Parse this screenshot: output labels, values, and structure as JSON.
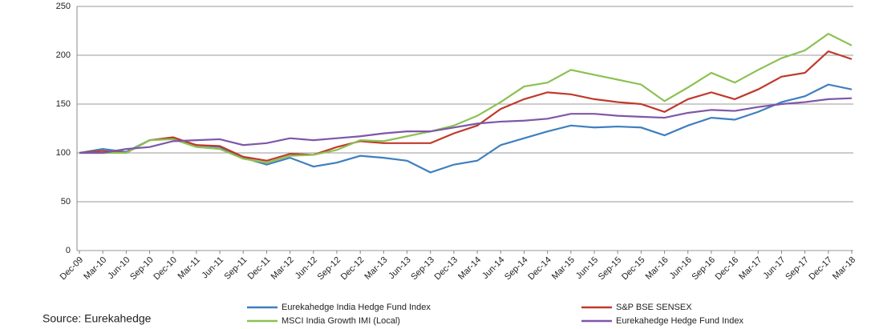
{
  "chart_data": {
    "type": "line",
    "source": "Source: Eurekahedge",
    "categories": [
      "Dec-09",
      "Mar-10",
      "Jun-10",
      "Sep-10",
      "Dec-10",
      "Mar-11",
      "Jun-11",
      "Sep-11",
      "Dec-11",
      "Mar-12",
      "Jun-12",
      "Sep-12",
      "Dec-12",
      "Mar-13",
      "Jun-13",
      "Sep-13",
      "Dec-13",
      "Mar-14",
      "Jun-14",
      "Sep-14",
      "Dec-14",
      "Mar-15",
      "Jun-15",
      "Sep-15",
      "Dec-15",
      "Mar-16",
      "Jun-16",
      "Sep-16",
      "Dec-16",
      "Mar-17",
      "Jun-17",
      "Sep-17",
      "Dec-17",
      "Mar-18"
    ],
    "series": [
      {
        "name": "Eurekahedge India Hedge Fund Index",
        "color": "#3f7fbf",
        "values": [
          100,
          104,
          101,
          113,
          115,
          108,
          106,
          95,
          88,
          95,
          86,
          90,
          97,
          95,
          92,
          80,
          88,
          92,
          108,
          115,
          122,
          128,
          126,
          127,
          126,
          118,
          128,
          136,
          134,
          142,
          152,
          158,
          170,
          165
        ]
      },
      {
        "name": "S&P BSE SENSEX",
        "color": "#c0392b",
        "values": [
          100,
          102,
          100,
          113,
          116,
          108,
          107,
          96,
          92,
          99,
          98,
          106,
          112,
          110,
          110,
          110,
          120,
          128,
          145,
          155,
          162,
          160,
          155,
          152,
          150,
          142,
          155,
          162,
          155,
          165,
          178,
          182,
          204,
          196
        ]
      },
      {
        "name": "MSCI India Growth IMI (Local)",
        "color": "#8cc152",
        "values": [
          100,
          100,
          100,
          113,
          114,
          106,
          104,
          94,
          90,
          97,
          98,
          103,
          113,
          112,
          117,
          122,
          128,
          138,
          152,
          168,
          172,
          185,
          180,
          175,
          170,
          153,
          167,
          182,
          172,
          185,
          197,
          205,
          222,
          210
        ]
      },
      {
        "name": "Eurekahedge Hedge Fund Index",
        "color": "#7e57a8",
        "values": [
          100,
          100,
          104,
          106,
          112,
          113,
          114,
          108,
          110,
          115,
          113,
          115,
          117,
          120,
          122,
          122,
          126,
          130,
          132,
          133,
          135,
          140,
          140,
          138,
          137,
          136,
          141,
          144,
          143,
          147,
          150,
          152,
          155,
          156
        ]
      }
    ],
    "ylim": [
      0,
      250
    ],
    "yticks": [
      0,
      50,
      100,
      150,
      200,
      250
    ],
    "grid": true
  }
}
